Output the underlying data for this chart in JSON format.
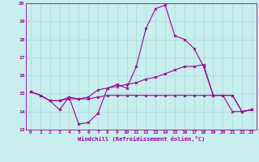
{
  "xlabel": "Windchill (Refroidissement éolien,°C)",
  "xlim": [
    -0.5,
    23.5
  ],
  "ylim": [
    13,
    20
  ],
  "yticks": [
    13,
    14,
    15,
    16,
    17,
    18,
    19,
    20
  ],
  "xticks": [
    0,
    1,
    2,
    3,
    4,
    5,
    6,
    7,
    8,
    9,
    10,
    11,
    12,
    13,
    14,
    15,
    16,
    17,
    18,
    19,
    20,
    21,
    22,
    23
  ],
  "bg_color": "#c8eeee",
  "grid_color": "#b0dddd",
  "line_color": "#990099",
  "line1_x": [
    0,
    1,
    2,
    3,
    4,
    5,
    6,
    7,
    8,
    9,
    10,
    11,
    12,
    13,
    14,
    15,
    16,
    17,
    18,
    19,
    20,
    21,
    22,
    23
  ],
  "line1_y": [
    15.1,
    14.9,
    14.6,
    14.1,
    14.8,
    13.3,
    13.4,
    13.9,
    15.3,
    15.5,
    15.3,
    16.5,
    18.6,
    19.7,
    19.9,
    18.2,
    18.0,
    17.5,
    16.5,
    14.9,
    14.9,
    14.0,
    14.0,
    14.1
  ],
  "line2_x": [
    0,
    1,
    2,
    3,
    4,
    5,
    6,
    7,
    8,
    9,
    10,
    11,
    12,
    13,
    14,
    15,
    16,
    17,
    18,
    19,
    20,
    21,
    22,
    23
  ],
  "line2_y": [
    15.1,
    14.9,
    14.6,
    14.6,
    14.8,
    14.7,
    14.8,
    15.2,
    15.3,
    15.4,
    15.5,
    15.6,
    15.8,
    15.9,
    16.1,
    16.3,
    16.5,
    16.5,
    16.6,
    14.9,
    14.9,
    14.9,
    14.0,
    14.1
  ],
  "line3_x": [
    0,
    1,
    2,
    3,
    4,
    5,
    6,
    7,
    8,
    9,
    10,
    11,
    12,
    13,
    14,
    15,
    16,
    17,
    18,
    19,
    20,
    21,
    22,
    23
  ],
  "line3_y": [
    15.1,
    14.9,
    14.6,
    14.6,
    14.7,
    14.7,
    14.7,
    14.8,
    14.9,
    14.9,
    14.9,
    14.9,
    14.9,
    14.9,
    14.9,
    14.9,
    14.9,
    14.9,
    14.9,
    14.9,
    14.9,
    14.9,
    14.0,
    14.1
  ]
}
